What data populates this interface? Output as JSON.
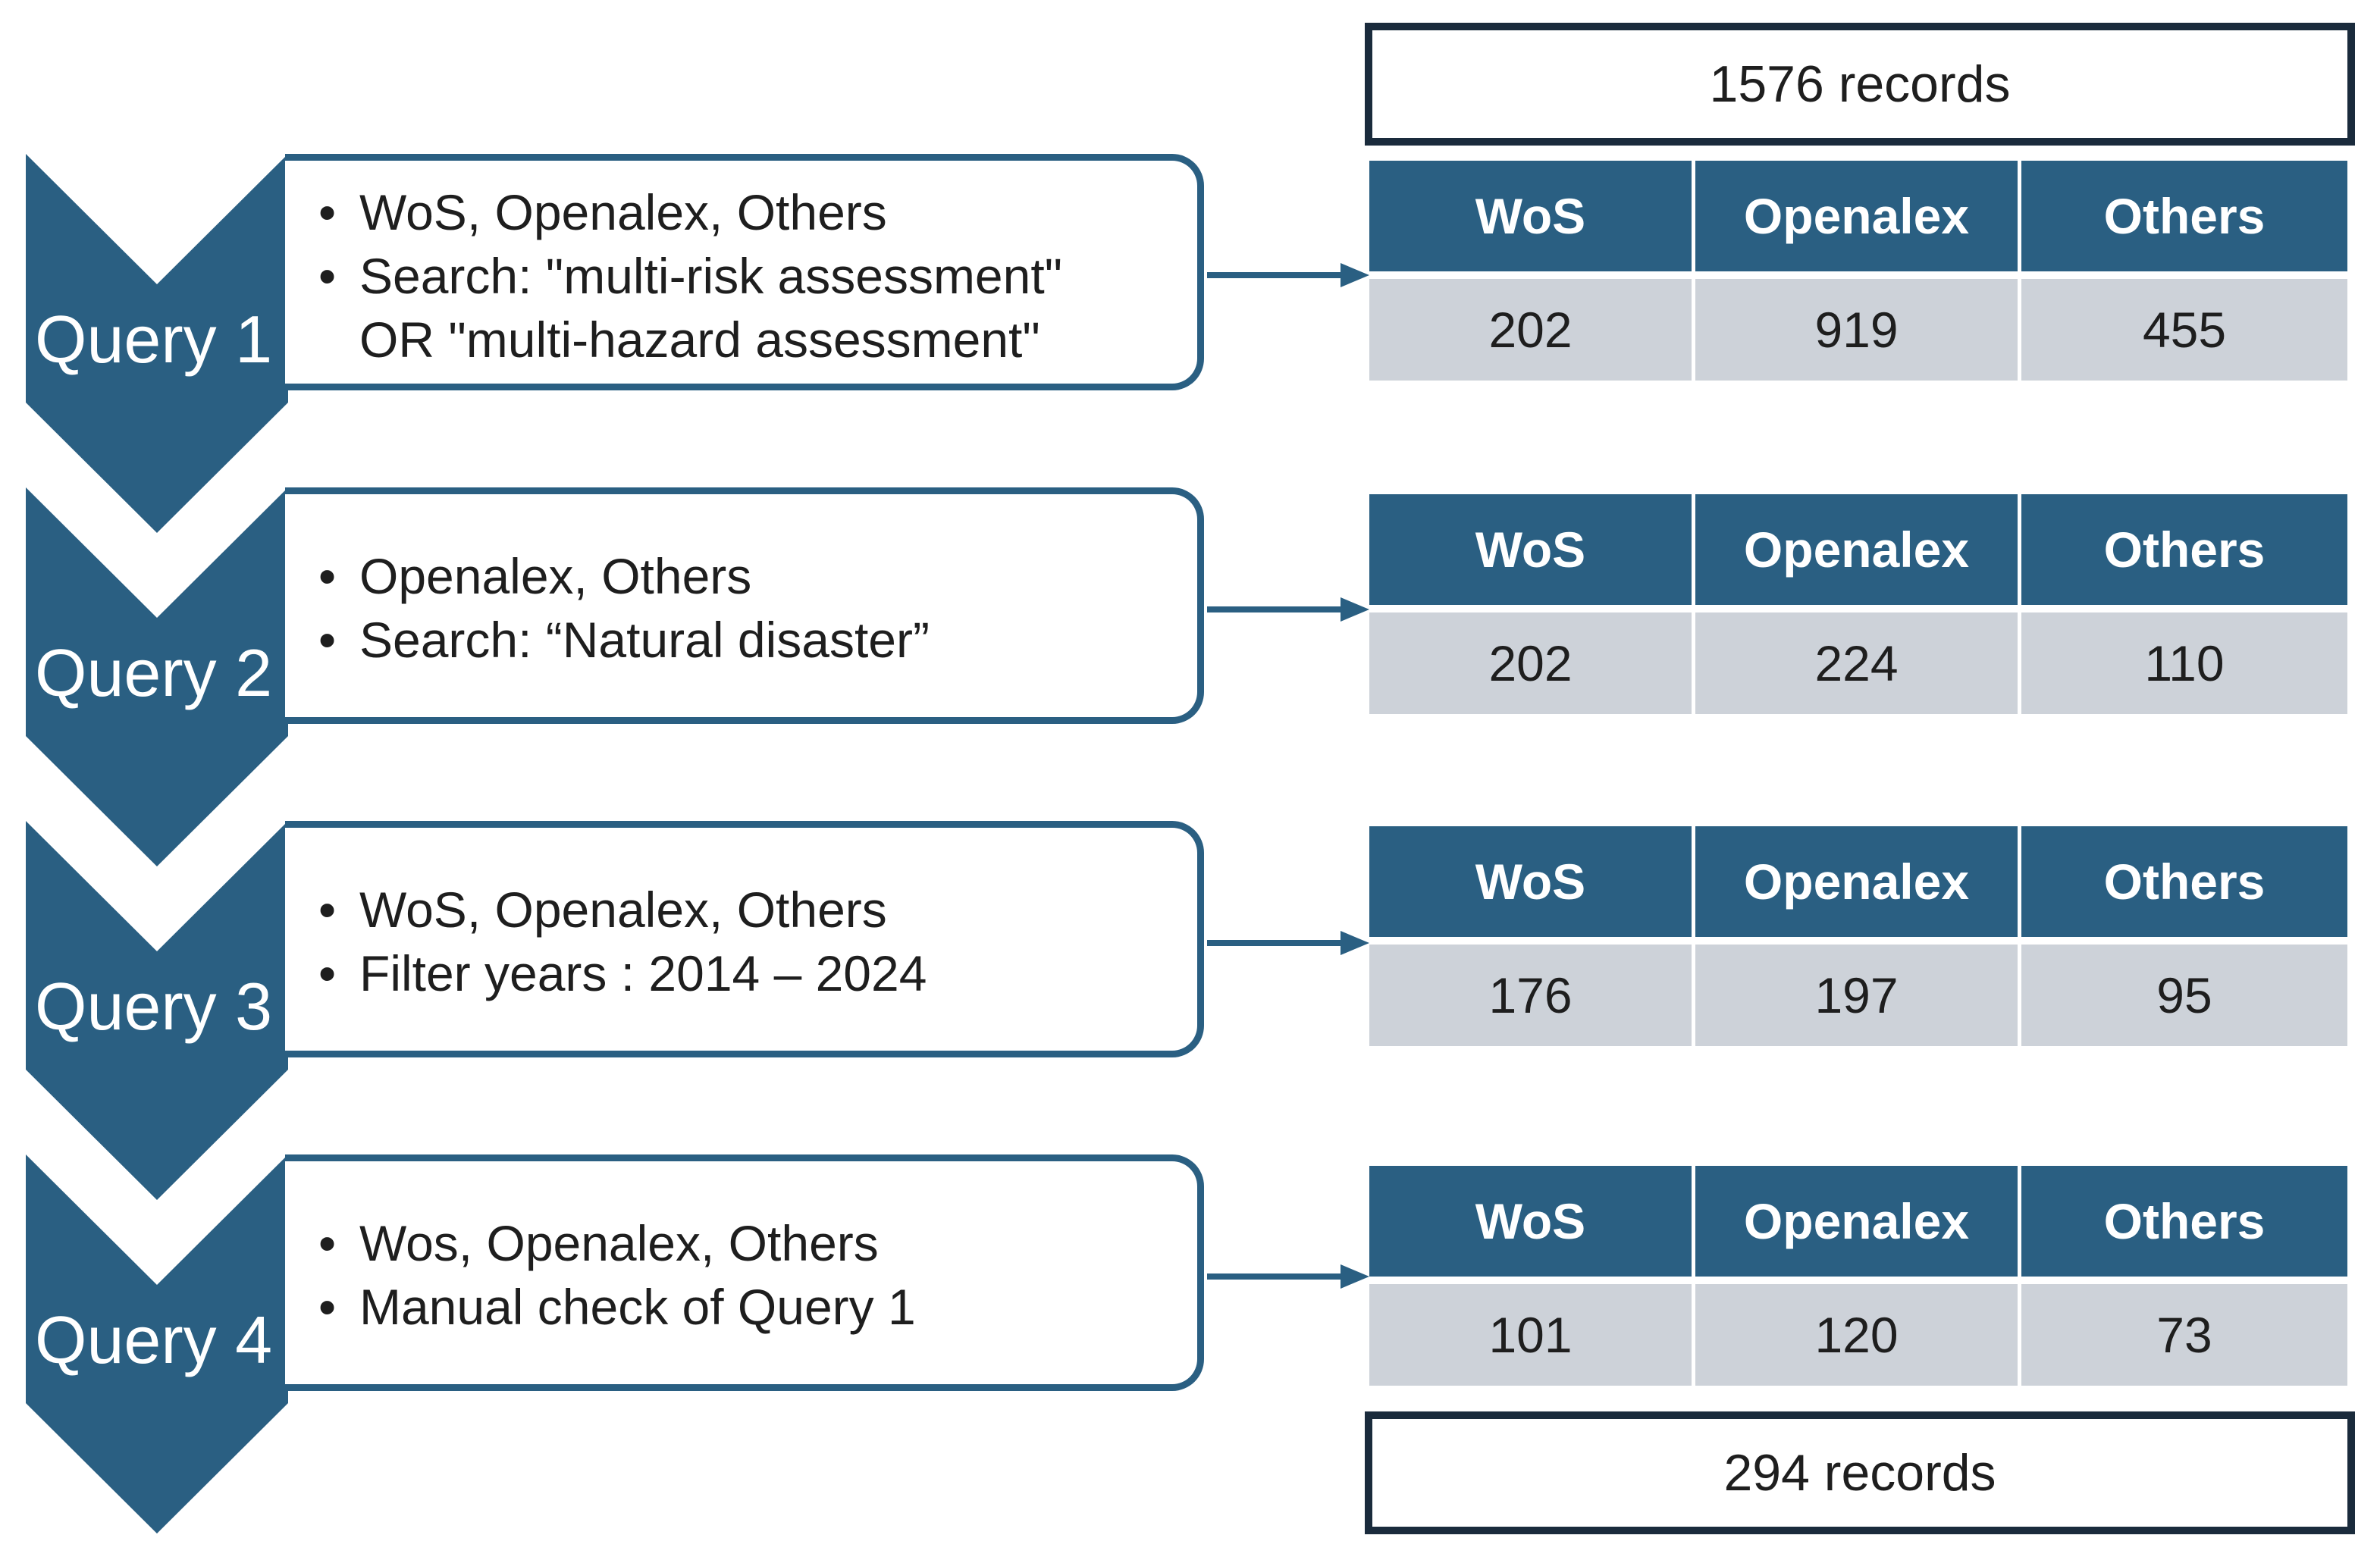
{
  "colors": {
    "primary": "#2a5f82",
    "cell_bg": "#cdd2d9",
    "records_border": "#1a2b3c"
  },
  "records_top": "1576 records",
  "records_bottom": "294 records",
  "queries": [
    {
      "label": "Query 1",
      "bullets": [
        "WoS, Openalex, Others",
        "Search: \"multi-risk assessment\"",
        "OR \"multi-hazard assessment\""
      ],
      "table": {
        "headers": [
          "WoS",
          "Openalex",
          "Others"
        ],
        "values": [
          "202",
          "919",
          "455"
        ]
      }
    },
    {
      "label": "Query 2",
      "bullets": [
        "Openalex, Others",
        "Search: “Natural disaster”"
      ],
      "table": {
        "headers": [
          "WoS",
          "Openalex",
          "Others"
        ],
        "values": [
          "202",
          "224",
          "110"
        ]
      }
    },
    {
      "label": "Query 3",
      "bullets": [
        "WoS, Openalex, Others",
        "Filter years : 2014 – 2024"
      ],
      "table": {
        "headers": [
          "WoS",
          "Openalex",
          "Others"
        ],
        "values": [
          "176",
          "197",
          "95"
        ]
      }
    },
    {
      "label": "Query 4",
      "bullets": [
        "Wos, Openalex, Others",
        "Manual check of Query 1"
      ],
      "table": {
        "headers": [
          "WoS",
          "Openalex",
          "Others"
        ],
        "values": [
          "101",
          "120",
          "73"
        ]
      }
    }
  ]
}
